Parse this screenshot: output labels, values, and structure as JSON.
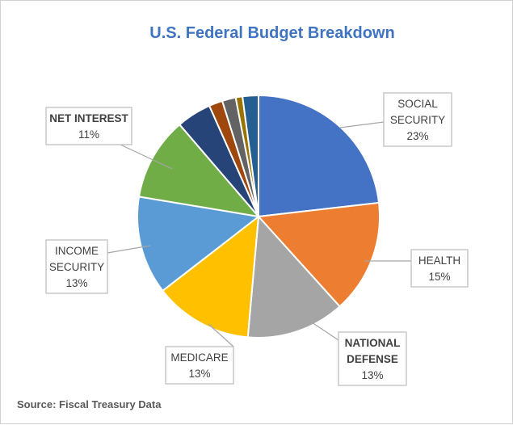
{
  "chart_data": {
    "type": "pie",
    "title": "U.S. Federal Budget Breakdown",
    "source": "Source: Fiscal Treasury Data",
    "slices": [
      {
        "key": "social_security",
        "value": 23,
        "color": "#4472c4",
        "label_lines": [
          "SOCIAL",
          "SECURITY",
          "23%"
        ],
        "bold": false
      },
      {
        "key": "health",
        "value": 15,
        "color": "#ed7d31",
        "label_lines": [
          "HEALTH",
          "15%"
        ],
        "bold": false
      },
      {
        "key": "national_defense",
        "value": 13,
        "color": "#a5a5a5",
        "label_lines": [
          "NATIONAL",
          "DEFENSE",
          "13%"
        ],
        "bold": true
      },
      {
        "key": "medicare",
        "value": 13,
        "color": "#ffc000",
        "label_lines": [
          "MEDICARE",
          "13%"
        ],
        "bold": false
      },
      {
        "key": "income_security",
        "value": 13,
        "color": "#5b9bd5",
        "label_lines": [
          "INCOME",
          "SECURITY",
          "13%"
        ],
        "bold": false
      },
      {
        "key": "net_interest",
        "value": 11,
        "color": "#70ad47",
        "label_lines": [
          "NET INTEREST",
          "11%"
        ],
        "bold": true
      },
      {
        "key": "other_1",
        "value": 4.6,
        "color": "#264478",
        "label_lines": [],
        "bold": false
      },
      {
        "key": "other_2",
        "value": 1.8,
        "color": "#9e480e",
        "label_lines": [],
        "bold": false
      },
      {
        "key": "other_3",
        "value": 1.8,
        "color": "#636363",
        "label_lines": [],
        "bold": false
      },
      {
        "key": "other_4",
        "value": 0.9,
        "color": "#997300",
        "label_lines": [],
        "bold": false
      },
      {
        "key": "other_5",
        "value": 2.1,
        "color": "#255e91",
        "label_lines": [],
        "bold": false
      }
    ]
  }
}
